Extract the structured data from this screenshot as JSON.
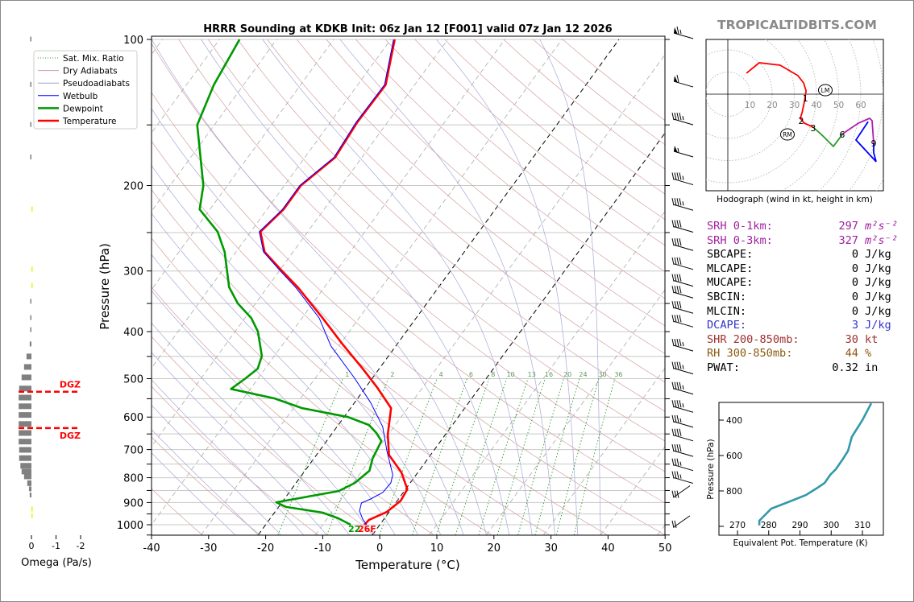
{
  "brand": "TROPICALTIDBITS.COM",
  "title": "HRRR Sounding at KDKB Init: 06z Jan 12 [F001] valid 07z Jan 12 2026",
  "legend": [
    {
      "label": "Sat. Mix. Ratio",
      "color": "#2a9a2a",
      "style": "dotted"
    },
    {
      "label": "Dry Adiabats",
      "color": "#c8a0a0",
      "style": "solid"
    },
    {
      "label": "Pseudoadiabats",
      "color": "#a0a0c8",
      "style": "solid"
    },
    {
      "label": "Wetbulb",
      "color": "#0000ff",
      "style": "solid"
    },
    {
      "label": "Dewpoint",
      "color": "#009900",
      "style": "thick"
    },
    {
      "label": "Temperature",
      "color": "#ff0000",
      "style": "thick"
    }
  ],
  "surface_labels": {
    "dewpoint": "22",
    "temperature": "26F"
  },
  "stats": [
    {
      "key": "SRH 0-1km:",
      "value": "297",
      "unit": "m²s⁻²",
      "color": "#a020a0"
    },
    {
      "key": "SRH 0-3km:",
      "value": "327",
      "unit": "m²s⁻²",
      "color": "#a020a0"
    },
    {
      "key": "SBCAPE:",
      "value": "0",
      "unit": "J/kg",
      "color": "#000000"
    },
    {
      "key": "MLCAPE:",
      "value": "0",
      "unit": "J/kg",
      "color": "#000000"
    },
    {
      "key": "MUCAPE:",
      "value": "0",
      "unit": "J/kg",
      "color": "#000000"
    },
    {
      "key": "SBCIN:",
      "value": "0",
      "unit": "J/kg",
      "color": "#000000"
    },
    {
      "key": "MLCIN:",
      "value": "0",
      "unit": "J/kg",
      "color": "#000000"
    },
    {
      "key": "DCAPE:",
      "value": "3",
      "unit": "J/kg",
      "color": "#3333cc"
    },
    {
      "key": "SHR 200-850mb:",
      "value": "30",
      "unit": "kt",
      "color": "#a03030"
    },
    {
      "key": "RH 300-850mb:",
      "value": "44",
      "unit": "%",
      "color": "#8a5a10"
    },
    {
      "key": "PWAT:",
      "value": "0.32",
      "unit": "in",
      "color": "#000000"
    }
  ],
  "chart_data": [
    {
      "type": "line",
      "name": "skew-t",
      "xlabel": "Temperature (°C)",
      "ylabel": "Pressure (hPa)",
      "xlim": [
        -40,
        50
      ],
      "ylim": [
        1050,
        100
      ],
      "yscale": "log",
      "xticks": [
        -40,
        -30,
        -20,
        -10,
        0,
        10,
        20,
        30,
        40,
        50
      ],
      "yticks": [
        100,
        200,
        300,
        400,
        500,
        600,
        700,
        800,
        900,
        1000
      ],
      "mixing_ratio_labels": [
        1,
        2,
        4,
        6,
        8,
        10,
        13,
        16,
        20,
        24,
        30,
        36
      ],
      "series": [
        {
          "name": "Temperature",
          "color": "#ff0000",
          "points": [
            [
              100,
              -59.3
            ],
            [
              124,
              -55.1
            ],
            [
              148,
              -55.3
            ],
            [
              175,
              -54.7
            ],
            [
              200,
              -57.1
            ],
            [
              224,
              -57.1
            ],
            [
              249,
              -58.3
            ],
            [
              274,
              -55.0
            ],
            [
              300,
              -49.5
            ],
            [
              325,
              -44.5
            ],
            [
              375,
              -36.4
            ],
            [
              425,
              -29.5
            ],
            [
              477,
              -22.9
            ],
            [
              521,
              -18.0
            ],
            [
              575,
              -12.9
            ],
            [
              652,
              -10.1
            ],
            [
              718,
              -7.3
            ],
            [
              780,
              -2.9
            ],
            [
              845,
              0.3
            ],
            [
              892,
              0.6
            ],
            [
              941,
              -0.4
            ],
            [
              977,
              -2.5
            ],
            [
              1000,
              -2.7
            ]
          ]
        },
        {
          "name": "Dewpoint",
          "color": "#009900",
          "points": [
            [
              100,
              -86.5
            ],
            [
              124,
              -85.2
            ],
            [
              150,
              -83.0
            ],
            [
              200,
              -74.2
            ],
            [
              224,
              -71.8
            ],
            [
              249,
              -65.8
            ],
            [
              274,
              -62.0
            ],
            [
              324,
              -56.7
            ],
            [
              350,
              -53.1
            ],
            [
              375,
              -48.9
            ],
            [
              400,
              -46.0
            ],
            [
              449,
              -42.2
            ],
            [
              477,
              -41.3
            ],
            [
              499,
              -42.2
            ],
            [
              525,
              -43.4
            ],
            [
              549,
              -34.6
            ],
            [
              575,
              -28.5
            ],
            [
              600,
              -19.3
            ],
            [
              623,
              -14.6
            ],
            [
              647,
              -12.3
            ],
            [
              672,
              -10.4
            ],
            [
              731,
              -9.7
            ],
            [
              774,
              -8.7
            ],
            [
              820,
              -9.7
            ],
            [
              852,
              -11.5
            ],
            [
              899,
              -21.0
            ],
            [
              919,
              -18.7
            ],
            [
              944,
              -11.6
            ],
            [
              970,
              -8.1
            ],
            [
              1000,
              -5.1
            ]
          ]
        },
        {
          "name": "Wetbulb",
          "color": "#0000ff",
          "points": [
            [
              100,
              -59.5
            ],
            [
              124,
              -55.3
            ],
            [
              148,
              -55.5
            ],
            [
              175,
              -54.9
            ],
            [
              200,
              -57.3
            ],
            [
              224,
              -57.3
            ],
            [
              249,
              -58.5
            ],
            [
              274,
              -55.2
            ],
            [
              300,
              -49.8
            ],
            [
              325,
              -44.9
            ],
            [
              375,
              -37.0
            ],
            [
              428,
              -31.4
            ],
            [
              499,
              -23.1
            ],
            [
              560,
              -17.2
            ],
            [
              628,
              -12.0
            ],
            [
              704,
              -8.2
            ],
            [
              789,
              -4.1
            ],
            [
              820,
              -3.4
            ],
            [
              858,
              -3.6
            ],
            [
              885,
              -4.9
            ],
            [
              902,
              -6.0
            ],
            [
              937,
              -5.3
            ],
            [
              974,
              -3.7
            ],
            [
              1000,
              -2.3
            ]
          ]
        }
      ]
    },
    {
      "type": "bar",
      "name": "omega",
      "xlabel": "Omega (Pa/s)",
      "xticks": [
        0,
        -1,
        -2
      ],
      "dgz_label": "DGZ",
      "dgz_levels": [
        532,
        632
      ],
      "levels": [
        [
          100,
          0.05
        ],
        [
          124,
          0.05
        ],
        [
          150,
          0.05
        ],
        [
          175,
          0.05
        ],
        [
          224,
          -0.02
        ],
        [
          298,
          -0.02
        ],
        [
          322,
          -0.02
        ],
        [
          347,
          0.02
        ],
        [
          375,
          0.05
        ],
        [
          397,
          0.05
        ],
        [
          425,
          0.07
        ],
        [
          450,
          0.2
        ],
        [
          473,
          0.3
        ],
        [
          497,
          0.4
        ],
        [
          524,
          0.5
        ],
        [
          547,
          0.52
        ],
        [
          570,
          0.52
        ],
        [
          594,
          0.52
        ],
        [
          620,
          0.52
        ],
        [
          647,
          0.52
        ],
        [
          674,
          0.52
        ],
        [
          701,
          0.5
        ],
        [
          729,
          0.5
        ],
        [
          756,
          0.45
        ],
        [
          777,
          0.4
        ],
        [
          795,
          0.3
        ],
        [
          821,
          0.17
        ],
        [
          845,
          0.1
        ],
        [
          870,
          0.07
        ],
        [
          930,
          -0.02
        ],
        [
          960,
          -0.02
        ]
      ]
    },
    {
      "type": "line",
      "name": "hodograph",
      "xlabel": "Hodograph (wind in kt, height in km)",
      "ring_labels": [
        10,
        20,
        30,
        40,
        50,
        60
      ],
      "segments": [
        {
          "color": "#ff0000",
          "points": [
            [
              8.4,
              9.5
            ],
            [
              14.2,
              14.2
            ],
            [
              23.6,
              13.1
            ],
            [
              31.6,
              8.4
            ],
            [
              34.2,
              5.1
            ],
            [
              35.3,
              1.5
            ],
            [
              34.5,
              -3.6
            ],
            [
              33.5,
              -8.4
            ],
            [
              32.7,
              -10.9
            ],
            [
              34.5,
              -13.1
            ],
            [
              38.5,
              -14.9
            ]
          ]
        },
        {
          "color": "#2a9a2a",
          "points": [
            [
              38.5,
              -14.9
            ],
            [
              42.5,
              -18.5
            ],
            [
              47.6,
              -23.6
            ],
            [
              52.0,
              -17.8
            ]
          ]
        },
        {
          "color": "#b020b0",
          "points": [
            [
              52.0,
              -17.8
            ],
            [
              58.9,
              -13.1
            ],
            [
              64.0,
              -10.9
            ],
            [
              65.1,
              -12.0
            ],
            [
              65.8,
              -22.2
            ]
          ]
        },
        {
          "color": "#0000ff",
          "points": [
            [
              65.8,
              -22.2
            ],
            [
              65.8,
              -26.5
            ],
            [
              66.9,
              -30.5
            ],
            [
              57.8,
              -20.7
            ],
            [
              63.3,
              -12.4
            ]
          ]
        }
      ],
      "height_labels": [
        {
          "label": "1",
          "u": 35.0,
          "v": -1.8
        },
        {
          "label": "2",
          "u": 33.1,
          "v": -12.0
        },
        {
          "label": "3",
          "u": 38.5,
          "v": -15.3
        },
        {
          "label": "6",
          "u": 51.6,
          "v": -18.2
        },
        {
          "label": "9",
          "u": 65.8,
          "v": -22.2
        }
      ],
      "storm_motion": [
        {
          "label": "LM",
          "u": 44.0,
          "v": 1.8
        },
        {
          "label": "RM",
          "u": 26.9,
          "v": -18.2
        }
      ]
    },
    {
      "type": "line",
      "name": "theta-e",
      "xlabel": "Equivalent Pot. Temperature (K)",
      "ylabel": "Pressure (hPa)",
      "xticks": [
        270,
        280,
        290,
        300,
        310
      ],
      "yticks": [
        400,
        600,
        800,
        1000
      ],
      "color": "#3399aa",
      "points": [
        [
          312.8,
          305
        ],
        [
          310,
          400
        ],
        [
          306.6,
          495
        ],
        [
          305.4,
          573
        ],
        [
          303.8,
          618
        ],
        [
          301.5,
          677
        ],
        [
          299.7,
          709
        ],
        [
          297.9,
          755
        ],
        [
          295.3,
          786
        ],
        [
          291.9,
          823
        ],
        [
          286.8,
          859
        ],
        [
          280.8,
          900
        ],
        [
          277,
          968
        ],
        [
          277,
          995
        ]
      ]
    }
  ],
  "wind_barbs": [
    [
      97,
      65
    ],
    [
      122,
      60
    ],
    [
      146,
      45
    ],
    [
      170,
      55
    ],
    [
      194,
      45
    ],
    [
      219,
      45
    ],
    [
      243,
      40
    ],
    [
      265,
      40
    ],
    [
      290,
      40
    ],
    [
      314,
      40
    ],
    [
      332,
      40
    ],
    [
      357,
      40
    ],
    [
      381,
      40
    ],
    [
      427,
      45
    ],
    [
      476,
      45
    ],
    [
      524,
      45
    ],
    [
      571,
      45
    ],
    [
      613,
      35
    ],
    [
      654,
      40
    ],
    [
      704,
      40
    ],
    [
      753,
      35
    ],
    [
      800,
      35
    ],
    [
      877,
      30
    ],
    [
      1011,
      20
    ]
  ]
}
